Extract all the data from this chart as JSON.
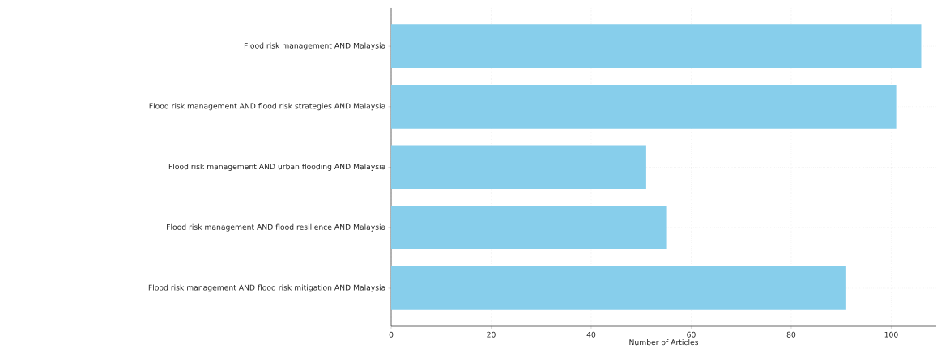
{
  "chart_data": {
    "type": "bar",
    "orientation": "horizontal",
    "xlabel": "Number of Articles",
    "categories": [
      "Flood risk management AND Malaysia",
      "Flood risk management AND flood risk strategies AND Malaysia",
      "Flood risk management AND urban flooding AND Malaysia",
      "Flood risk management AND flood resilience AND Malaysia",
      "Flood risk management AND flood risk mitigation AND Malaysia"
    ],
    "values": [
      106,
      101,
      51,
      55,
      91
    ],
    "color": "#87ceeb",
    "xlim": [
      0,
      109
    ],
    "xticks": [
      0,
      20,
      40,
      60,
      80,
      100
    ],
    "grid": true
  }
}
